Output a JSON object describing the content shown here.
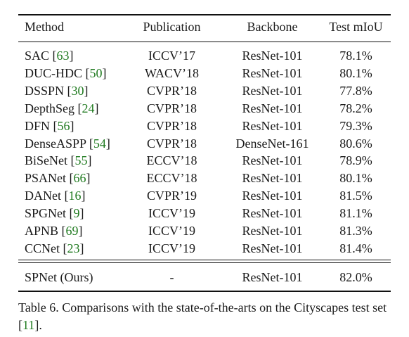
{
  "table": {
    "headers": {
      "method": "Method",
      "publication": "Publication",
      "backbone": "Backbone",
      "miou": "Test mIoU"
    },
    "rows": [
      {
        "method": "SAC",
        "ref": "63",
        "publication": "ICCV’17",
        "backbone": "ResNet-101",
        "miou": "78.1%"
      },
      {
        "method": "DUC-HDC",
        "ref": "50",
        "publication": "WACV’18",
        "backbone": "ResNet-101",
        "miou": "80.1%"
      },
      {
        "method": "DSSPN",
        "ref": "30",
        "publication": "CVPR’18",
        "backbone": "ResNet-101",
        "miou": "77.8%"
      },
      {
        "method": "DepthSeg",
        "ref": "24",
        "publication": "CVPR’18",
        "backbone": "ResNet-101",
        "miou": "78.2%"
      },
      {
        "method": "DFN",
        "ref": "56",
        "publication": "CVPR’18",
        "backbone": "ResNet-101",
        "miou": "79.3%"
      },
      {
        "method": "DenseASPP",
        "ref": "54",
        "publication": "CVPR’18",
        "backbone": "DenseNet-161",
        "miou": "80.6%"
      },
      {
        "method": "BiSeNet",
        "ref": "55",
        "publication": "ECCV’18",
        "backbone": "ResNet-101",
        "miou": "78.9%"
      },
      {
        "method": "PSANet",
        "ref": "66",
        "publication": "ECCV’18",
        "backbone": "ResNet-101",
        "miou": "80.1%"
      },
      {
        "method": "DANet",
        "ref": "16",
        "publication": "CVPR’19",
        "backbone": "ResNet-101",
        "miou": "81.5%"
      },
      {
        "method": "SPGNet",
        "ref": "9",
        "publication": "ICCV’19",
        "backbone": "ResNet-101",
        "miou": "81.1%"
      },
      {
        "method": "APNB",
        "ref": "69",
        "publication": "ICCV’19",
        "backbone": "ResNet-101",
        "miou": "81.3%"
      },
      {
        "method": "CCNet",
        "ref": "23",
        "publication": "ICCV’19",
        "backbone": "ResNet-101",
        "miou": "81.4%"
      }
    ],
    "ours": {
      "method": "SPNet (Ours)",
      "publication": "-",
      "backbone": "ResNet-101",
      "miou": "82.0%"
    }
  },
  "caption": {
    "prefix": "Table 6. Comparisons with the state-of-the-arts on the Cityscapes test set [",
    "ref": "11",
    "suffix": "]."
  },
  "colors": {
    "ref_link": "#1f7a1f",
    "text": "#1a1a1a"
  }
}
